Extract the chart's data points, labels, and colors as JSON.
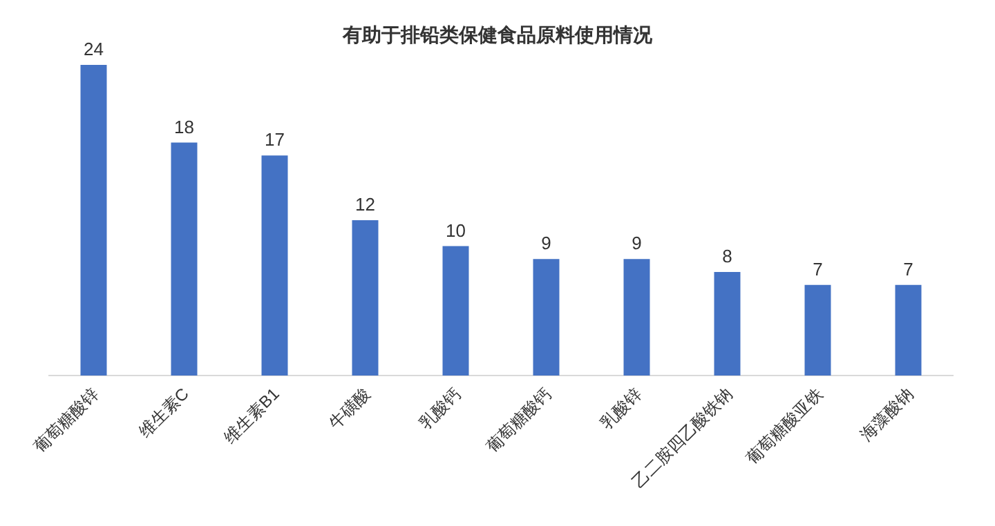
{
  "chart_data": {
    "type": "bar",
    "title": "有助于排铅类保健食品原料使用情况",
    "categories": [
      "葡萄糖酸锌",
      "维生素C",
      "维生素B1",
      "牛磺酸",
      "乳酸钙",
      "葡萄糖酸钙",
      "乳酸锌",
      "乙二胺四乙酸铁钠",
      "葡萄糖酸亚铁",
      "海藻酸钠"
    ],
    "values": [
      24,
      18,
      17,
      12,
      10,
      9,
      9,
      8,
      7,
      7
    ],
    "color": "#4472c4",
    "data_labels": true
  }
}
